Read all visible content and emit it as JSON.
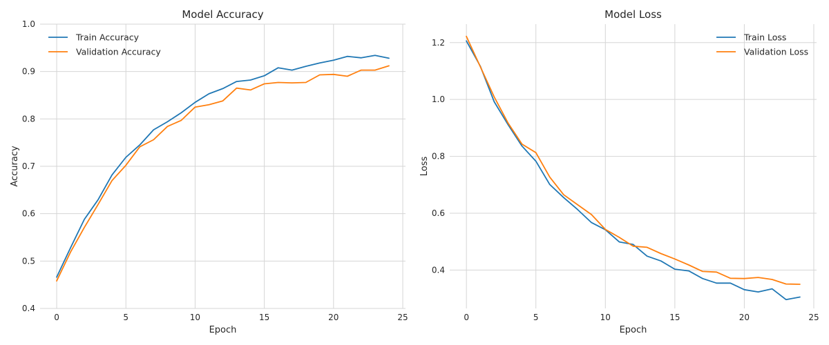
{
  "chart_data": [
    {
      "type": "line",
      "title": "Model Accuracy",
      "xlabel": "Epoch",
      "ylabel": "Accuracy",
      "xlim": [
        -1.2,
        25.2
      ],
      "ylim": [
        0.4,
        1.0
      ],
      "xticks": [
        0,
        5,
        10,
        15,
        20,
        25
      ],
      "yticks": [
        0.4,
        0.5,
        0.6,
        0.7,
        0.8,
        0.9,
        1.0
      ],
      "ytick_labels": [
        "0.4",
        "0.5",
        "0.6",
        "0.7",
        "0.8",
        "0.9",
        "1.0"
      ],
      "grid": true,
      "legend_position": "top-left",
      "x": [
        0,
        1,
        2,
        3,
        4,
        5,
        6,
        7,
        8,
        9,
        10,
        11,
        12,
        13,
        14,
        15,
        16,
        17,
        18,
        19,
        20,
        21,
        22,
        23,
        24
      ],
      "series": [
        {
          "name": "Train Accuracy",
          "color": "#1f77b4",
          "values": [
            0.466,
            0.528,
            0.588,
            0.63,
            0.682,
            0.719,
            0.745,
            0.777,
            0.794,
            0.813,
            0.835,
            0.853,
            0.864,
            0.879,
            0.882,
            0.891,
            0.908,
            0.903,
            0.911,
            0.918,
            0.924,
            0.932,
            0.929,
            0.934,
            0.928
          ]
        },
        {
          "name": "Validation Accuracy",
          "color": "#ff7f0e",
          "values": [
            0.458,
            0.519,
            0.571,
            0.62,
            0.67,
            0.702,
            0.741,
            0.756,
            0.784,
            0.797,
            0.825,
            0.83,
            0.838,
            0.865,
            0.861,
            0.874,
            0.877,
            0.876,
            0.877,
            0.893,
            0.894,
            0.89,
            0.903,
            0.903,
            0.912
          ]
        }
      ]
    },
    {
      "type": "line",
      "title": "Model Loss",
      "xlabel": "Epoch",
      "ylabel": "Loss",
      "xlim": [
        -1.2,
        25.2
      ],
      "ylim": [
        0.265,
        1.265
      ],
      "xticks": [
        0,
        5,
        10,
        15,
        20,
        25
      ],
      "yticks": [
        0.4,
        0.6,
        0.8,
        1.0,
        1.2
      ],
      "ytick_labels": [
        "0.4",
        "0.6",
        "0.8",
        "1.0",
        "1.2"
      ],
      "grid": true,
      "legend_position": "top-right",
      "x": [
        0,
        1,
        2,
        3,
        4,
        5,
        6,
        7,
        8,
        9,
        10,
        11,
        12,
        13,
        14,
        15,
        16,
        17,
        18,
        19,
        20,
        21,
        22,
        23,
        24
      ],
      "series": [
        {
          "name": "Train Loss",
          "color": "#1f77b4",
          "values": [
            1.206,
            1.117,
            0.992,
            0.911,
            0.836,
            0.783,
            0.701,
            0.655,
            0.613,
            0.567,
            0.542,
            0.499,
            0.49,
            0.449,
            0.432,
            0.403,
            0.397,
            0.37,
            0.354,
            0.354,
            0.331,
            0.323,
            0.334,
            0.296,
            0.305
          ]
        },
        {
          "name": "Validation Loss",
          "color": "#ff7f0e",
          "values": [
            1.222,
            1.115,
            1.009,
            0.917,
            0.843,
            0.813,
            0.727,
            0.665,
            0.63,
            0.595,
            0.543,
            0.515,
            0.484,
            0.48,
            0.458,
            0.439,
            0.418,
            0.395,
            0.393,
            0.371,
            0.37,
            0.374,
            0.367,
            0.351,
            0.35
          ]
        }
      ]
    }
  ]
}
